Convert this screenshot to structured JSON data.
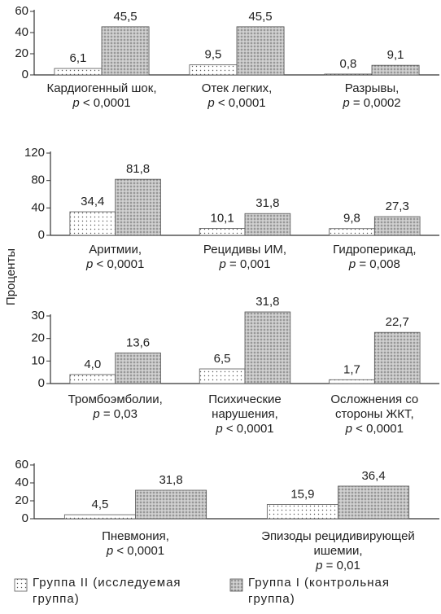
{
  "y_label": "Проценты",
  "chart_data": [
    {
      "type": "bar",
      "ylim": [
        0,
        60
      ],
      "yticks": [
        0,
        20,
        40,
        60
      ],
      "categories": [
        "Кардиогенный шок,",
        "Отек легких,",
        "Разрывы,"
      ],
      "p_values": [
        "p < 0,0001",
        "p < 0,0001",
        "p = 0,0002"
      ],
      "series": [
        {
          "name": "Группа II (исследуемая группа)",
          "color": "#ffffff",
          "values": [
            6.1,
            9.5,
            0.8
          ],
          "value_labels": [
            "6,1",
            "9,5",
            "0,8"
          ]
        },
        {
          "name": "Группа I (контрольная группа)",
          "color": "#c4c4c4",
          "values": [
            45.5,
            45.5,
            9.1
          ],
          "value_labels": [
            "45,5",
            "45,5",
            "9,1"
          ]
        }
      ]
    },
    {
      "type": "bar",
      "ylim": [
        0,
        120
      ],
      "yticks": [
        0,
        40,
        80,
        120
      ],
      "categories": [
        "Аритмии,",
        "Рецидивы ИМ,",
        "Гидроперикад,"
      ],
      "p_values": [
        "p < 0,0001",
        "p = 0,001",
        "p = 0,008"
      ],
      "series": [
        {
          "values": [
            34.4,
            10.1,
            9.8
          ],
          "value_labels": [
            "34,4",
            "10,1",
            "9,8"
          ]
        },
        {
          "values": [
            81.8,
            31.8,
            27.3
          ],
          "value_labels": [
            "81,8",
            "31,8",
            "27,3"
          ]
        }
      ]
    },
    {
      "type": "bar",
      "ylim": [
        0,
        30
      ],
      "yticks": [
        0,
        10,
        20,
        30
      ],
      "categories": [
        "Тромбоэмболии,",
        "Психические нарушения,",
        "Осложнения со стороны ЖКТ,"
      ],
      "p_values": [
        "p = 0,03",
        "p < 0,0001",
        "p < 0,0001"
      ],
      "series": [
        {
          "values": [
            4.0,
            6.5,
            1.7
          ],
          "value_labels": [
            "4,0",
            "6,5",
            "1,7"
          ]
        },
        {
          "values": [
            13.6,
            31.8,
            22.7
          ],
          "value_labels": [
            "13,6",
            "31,8",
            "22,7"
          ]
        }
      ]
    },
    {
      "type": "bar",
      "ylim": [
        0,
        60
      ],
      "yticks": [
        0,
        20,
        40,
        60
      ],
      "categories": [
        "Пневмония,",
        "Эпизоды рецидивирующей ишемии,"
      ],
      "p_values": [
        "p < 0,0001",
        "p = 0,01"
      ],
      "series": [
        {
          "values": [
            4.5,
            15.9
          ],
          "value_labels": [
            "4,5",
            "15,9"
          ]
        },
        {
          "values": [
            31.8,
            36.4
          ],
          "value_labels": [
            "31,8",
            "36,4"
          ]
        }
      ]
    }
  ]
}
